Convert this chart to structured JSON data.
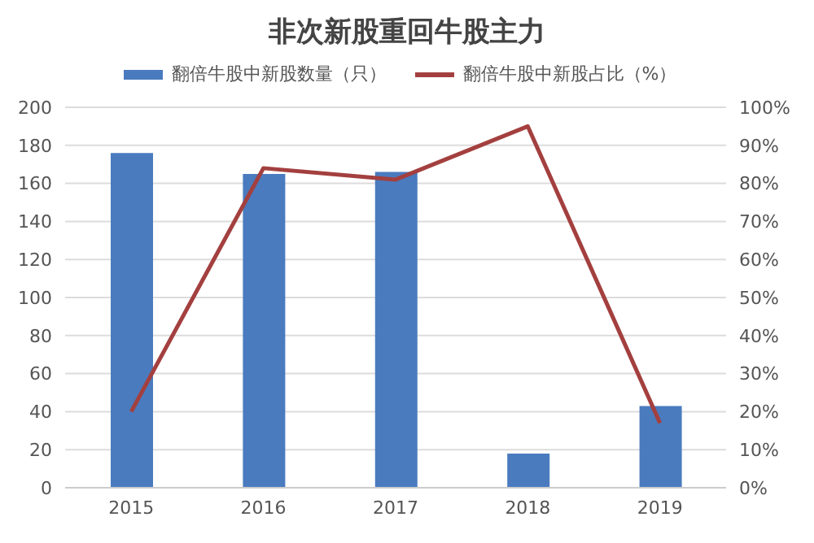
{
  "chart_data": {
    "type": "bar",
    "title": "非次新股重回牛股主力",
    "categories": [
      "2015",
      "2016",
      "2017",
      "2018",
      "2019"
    ],
    "series": [
      {
        "name": "翻倍牛股中新股数量（只）",
        "color": "#4a7bbf",
        "values": [
          176,
          165,
          166,
          18,
          43
        ]
      },
      {
        "name": "翻倍牛股中新股占比（%）",
        "type": "line",
        "axis": "y2",
        "color": "#a3403f",
        "values": [
          20,
          84,
          81,
          95,
          17
        ]
      }
    ],
    "ylim": [
      0,
      200
    ],
    "yticks": [
      0,
      20,
      40,
      60,
      80,
      100,
      120,
      140,
      160,
      180,
      200
    ],
    "y2lim": [
      0,
      100
    ],
    "y2ticks": [
      {
        "value": 0,
        "label": "0%"
      },
      {
        "value": 10,
        "label": "10%"
      },
      {
        "value": 20,
        "label": "20%"
      },
      {
        "value": 30,
        "label": "30%"
      },
      {
        "value": 40,
        "label": "40%"
      },
      {
        "value": 50,
        "label": "50%"
      },
      {
        "value": 60,
        "label": "60%"
      },
      {
        "value": 70,
        "label": "70%"
      },
      {
        "value": 80,
        "label": "80%"
      },
      {
        "value": 90,
        "label": "90%"
      },
      {
        "value": 100,
        "label": "100%"
      }
    ],
    "grid": "y",
    "legend": "top",
    "marker": "none"
  }
}
